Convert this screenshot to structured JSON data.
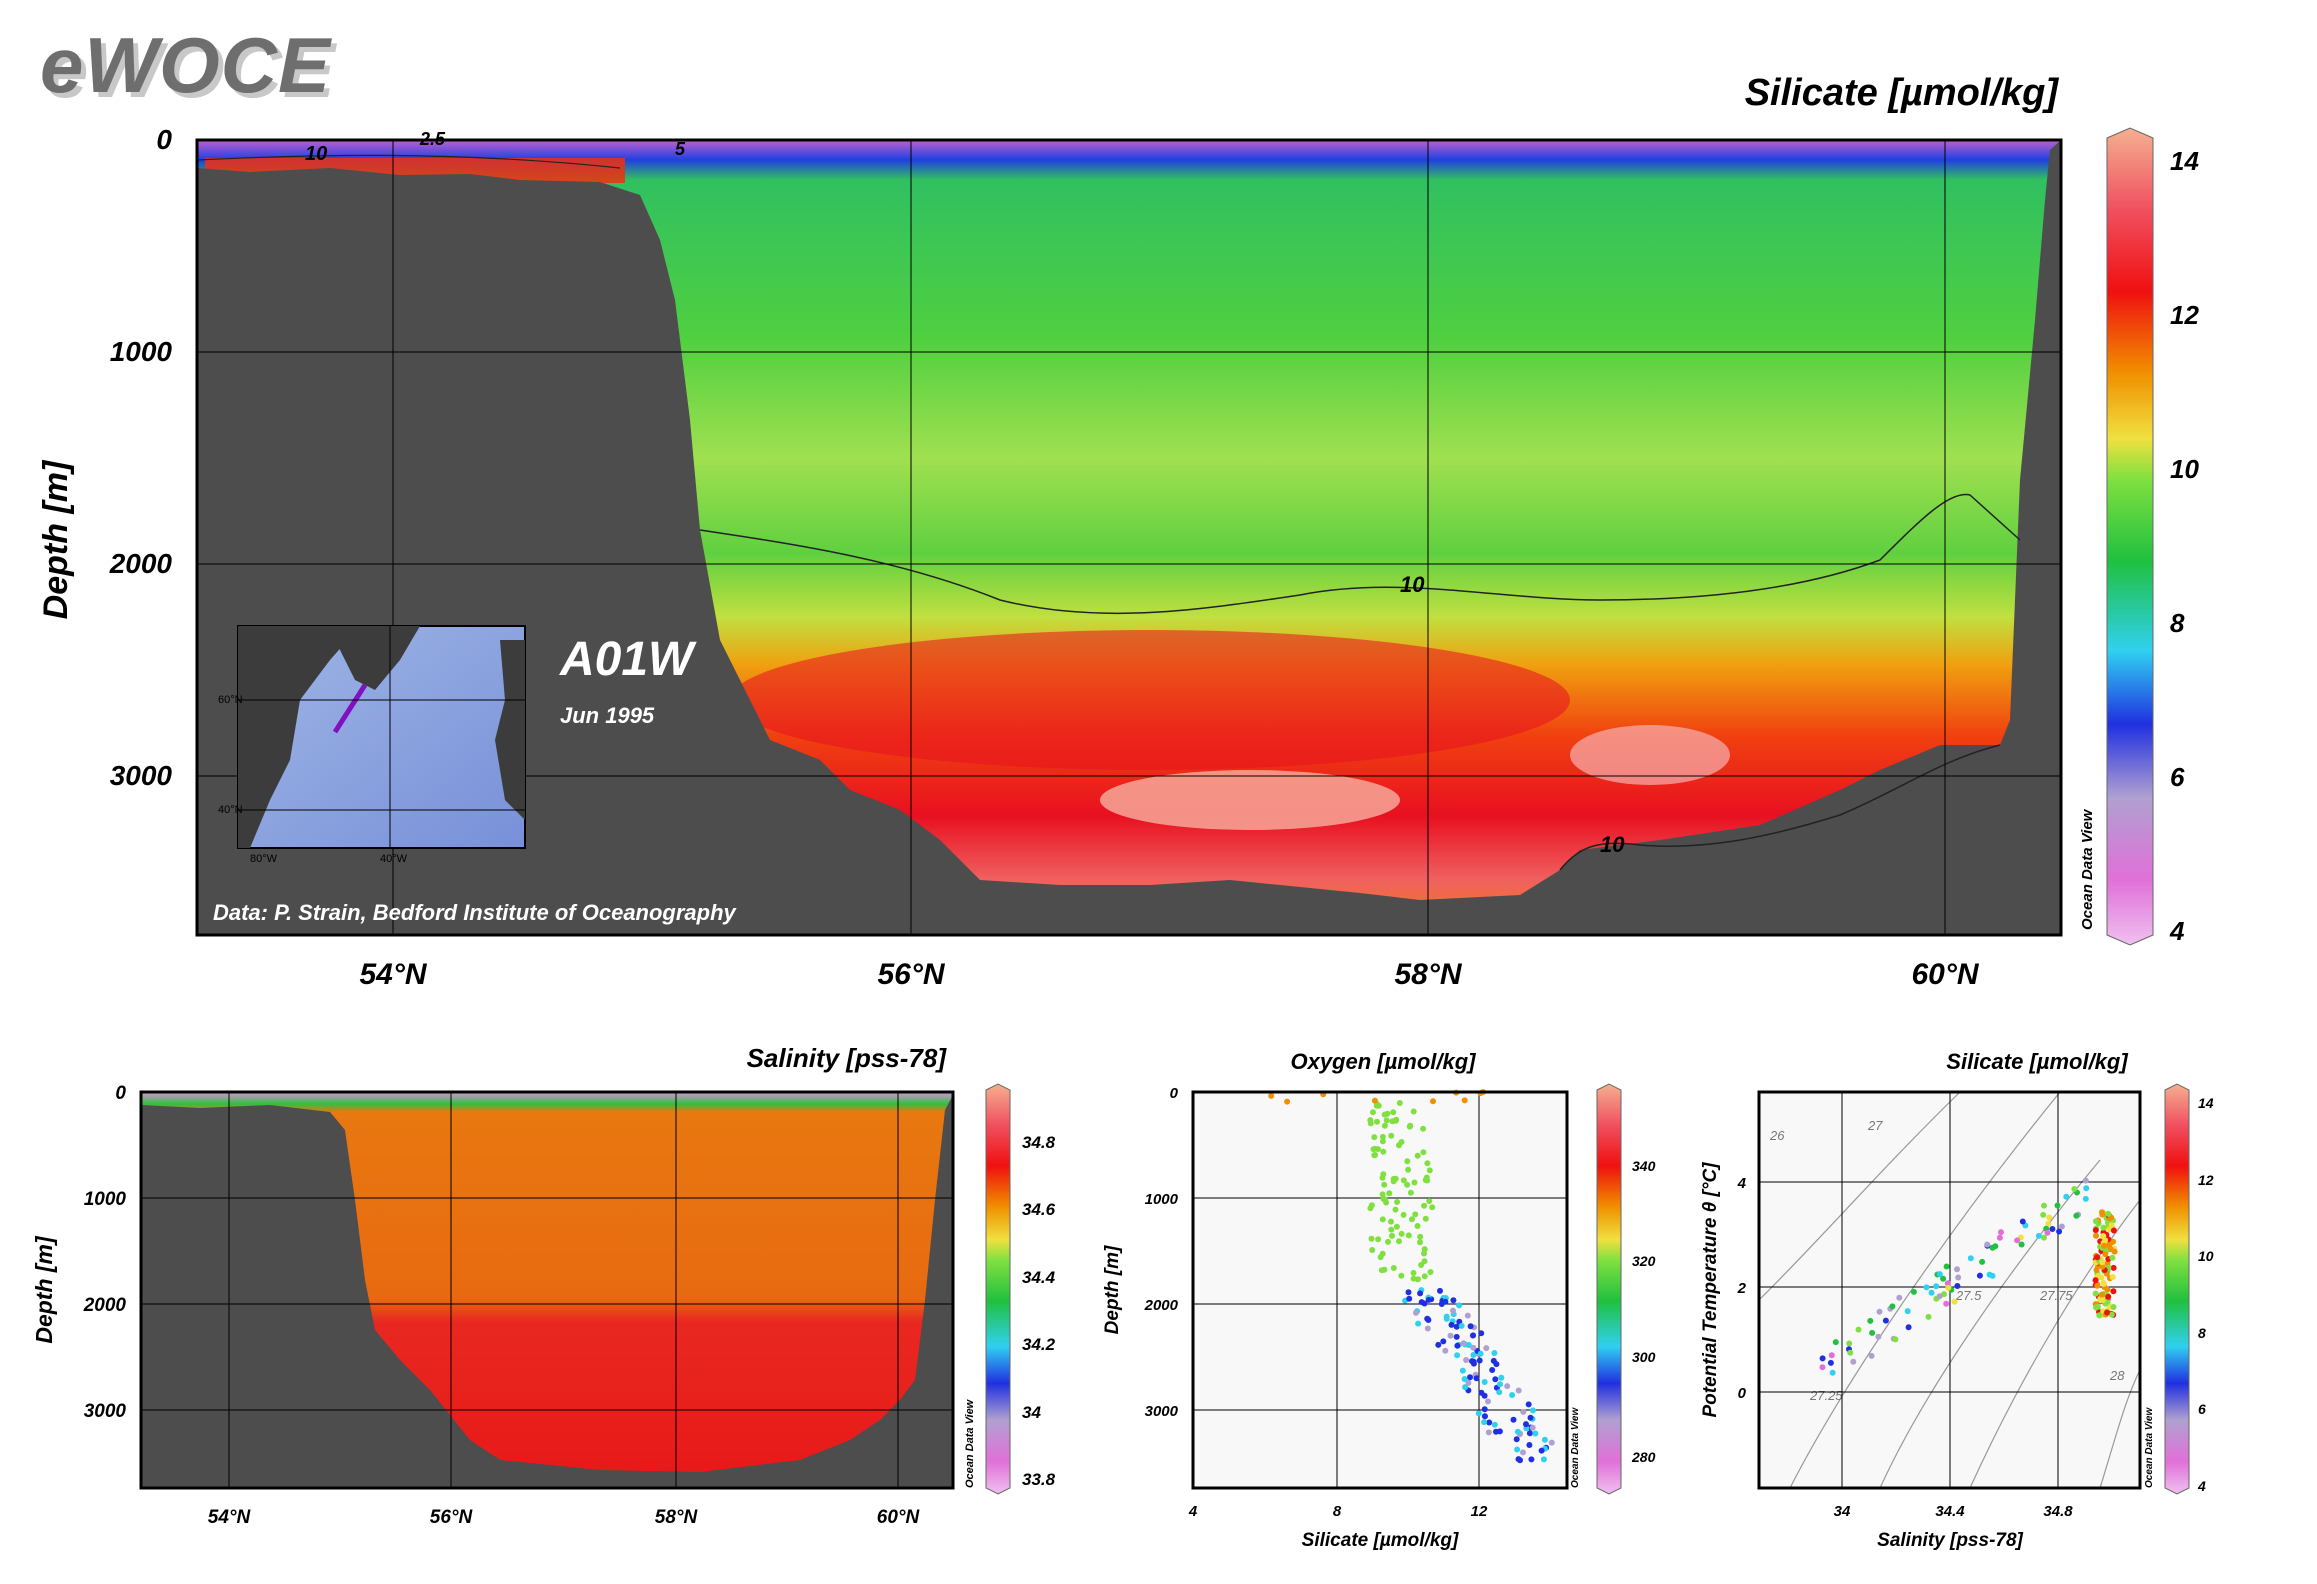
{
  "header": {
    "logo": "eWOCE"
  },
  "main_section": {
    "title": "Silicate [µmol/kg]",
    "ylabel": "Depth [m]",
    "inset_map": {
      "cruise": "A01W",
      "date": "Jun 1995",
      "lat_labels": [
        "60°N",
        "40°N"
      ],
      "lon_labels": [
        "80°W",
        "40°W"
      ]
    },
    "credit": "Data: P. Strain, Bedford Institute of Oceanography",
    "odv_label": "Ocean Data View",
    "contour_labels": [
      "10",
      "10",
      "10",
      "2.5",
      "5",
      "10"
    ]
  },
  "chart_data": [
    {
      "type": "heatmap",
      "name": "section-silicate",
      "title": "Silicate [µmol/kg]",
      "xlabel": "",
      "ylabel": "Depth [m]",
      "x_ticks": [
        "54°N",
        "56°N",
        "58°N",
        "60°N"
      ],
      "y_ticks": [
        "0",
        "1000",
        "2000",
        "3000"
      ],
      "xlim": [
        53.25,
        60.5
      ],
      "ylim": [
        3750,
        0
      ],
      "colorbar": {
        "ticks": [
          "14",
          "12",
          "10",
          "8",
          "6",
          "4"
        ],
        "range": [
          4,
          14
        ]
      },
      "layers": [
        {
          "depth_range": [
            0,
            100
          ],
          "silicate": 4
        },
        {
          "depth_range": [
            100,
            1850
          ],
          "silicate": 9
        },
        {
          "depth_range": [
            1850,
            2400
          ],
          "silicate": 10.5
        },
        {
          "depth_range": [
            2400,
            3400
          ],
          "silicate": 12.5
        },
        {
          "depth_range": [
            3000,
            3300
          ],
          "silicate": 13.5
        }
      ],
      "grid": true
    },
    {
      "type": "heatmap",
      "name": "section-salinity",
      "title": "Salinity [pss-78]",
      "ylabel": "Depth [m]",
      "x_ticks": [
        "54°N",
        "56°N",
        "58°N",
        "60°N"
      ],
      "y_ticks": [
        "0",
        "1000",
        "2000",
        "3000"
      ],
      "xlim": [
        53.25,
        60.5
      ],
      "ylim": [
        3750,
        0
      ],
      "colorbar": {
        "ticks": [
          "34.8",
          "34.6",
          "34.4",
          "34.2",
          "34",
          "33.8"
        ],
        "range": [
          33.7,
          35.0
        ]
      },
      "layers": [
        {
          "depth_range": [
            0,
            100
          ],
          "salinity": 34.0
        },
        {
          "depth_range": [
            100,
            2000
          ],
          "salinity": 34.88
        },
        {
          "depth_range": [
            2000,
            3550
          ],
          "salinity": 34.92
        }
      ],
      "grid": true
    },
    {
      "type": "scatter",
      "name": "profile-silicate-depth",
      "title": "Oxygen [µmol/kg]",
      "xlabel": "Silicate [µmol/kg]",
      "ylabel": "Depth [m]",
      "x_ticks": [
        "4",
        "8",
        "12"
      ],
      "y_ticks": [
        "0",
        "1000",
        "2000",
        "3000"
      ],
      "xlim": [
        4,
        13.5
      ],
      "ylim": [
        3750,
        0
      ],
      "colorbar": {
        "ticks": [
          "340",
          "320",
          "300",
          "280"
        ],
        "range": [
          270,
          350
        ]
      },
      "points_color_by": "Oxygen [µmol/kg]",
      "grid": true
    },
    {
      "type": "scatter",
      "name": "ts-diagram",
      "title": "Silicate [µmol/kg]",
      "xlabel": "Salinity [pss-78]",
      "ylabel": "Potential Temperature θ [°C]",
      "x_ticks": [
        "34",
        "34.4",
        "34.8"
      ],
      "y_ticks": [
        "4",
        "2",
        "0"
      ],
      "xlim": [
        33.8,
        35.0
      ],
      "ylim": [
        -1.8,
        5.8
      ],
      "isopycnal_labels": [
        "26",
        "27",
        "27.25",
        "27.5",
        "27.75",
        "28"
      ],
      "colorbar": {
        "ticks": [
          "14",
          "12",
          "10",
          "8",
          "6",
          "4"
        ],
        "range": [
          4,
          14
        ]
      },
      "points_color_by": "Silicate [µmol/kg]",
      "grid": true
    }
  ],
  "colors": {
    "topography": "#4d4d4d",
    "odv_scale": [
      "#f0b8f0",
      "#e070d8",
      "#b0a0d0",
      "#2030e0",
      "#30d0f0",
      "#20c040",
      "#80e040",
      "#f0e040",
      "#f09000",
      "#f01010",
      "#f0a080"
    ]
  }
}
